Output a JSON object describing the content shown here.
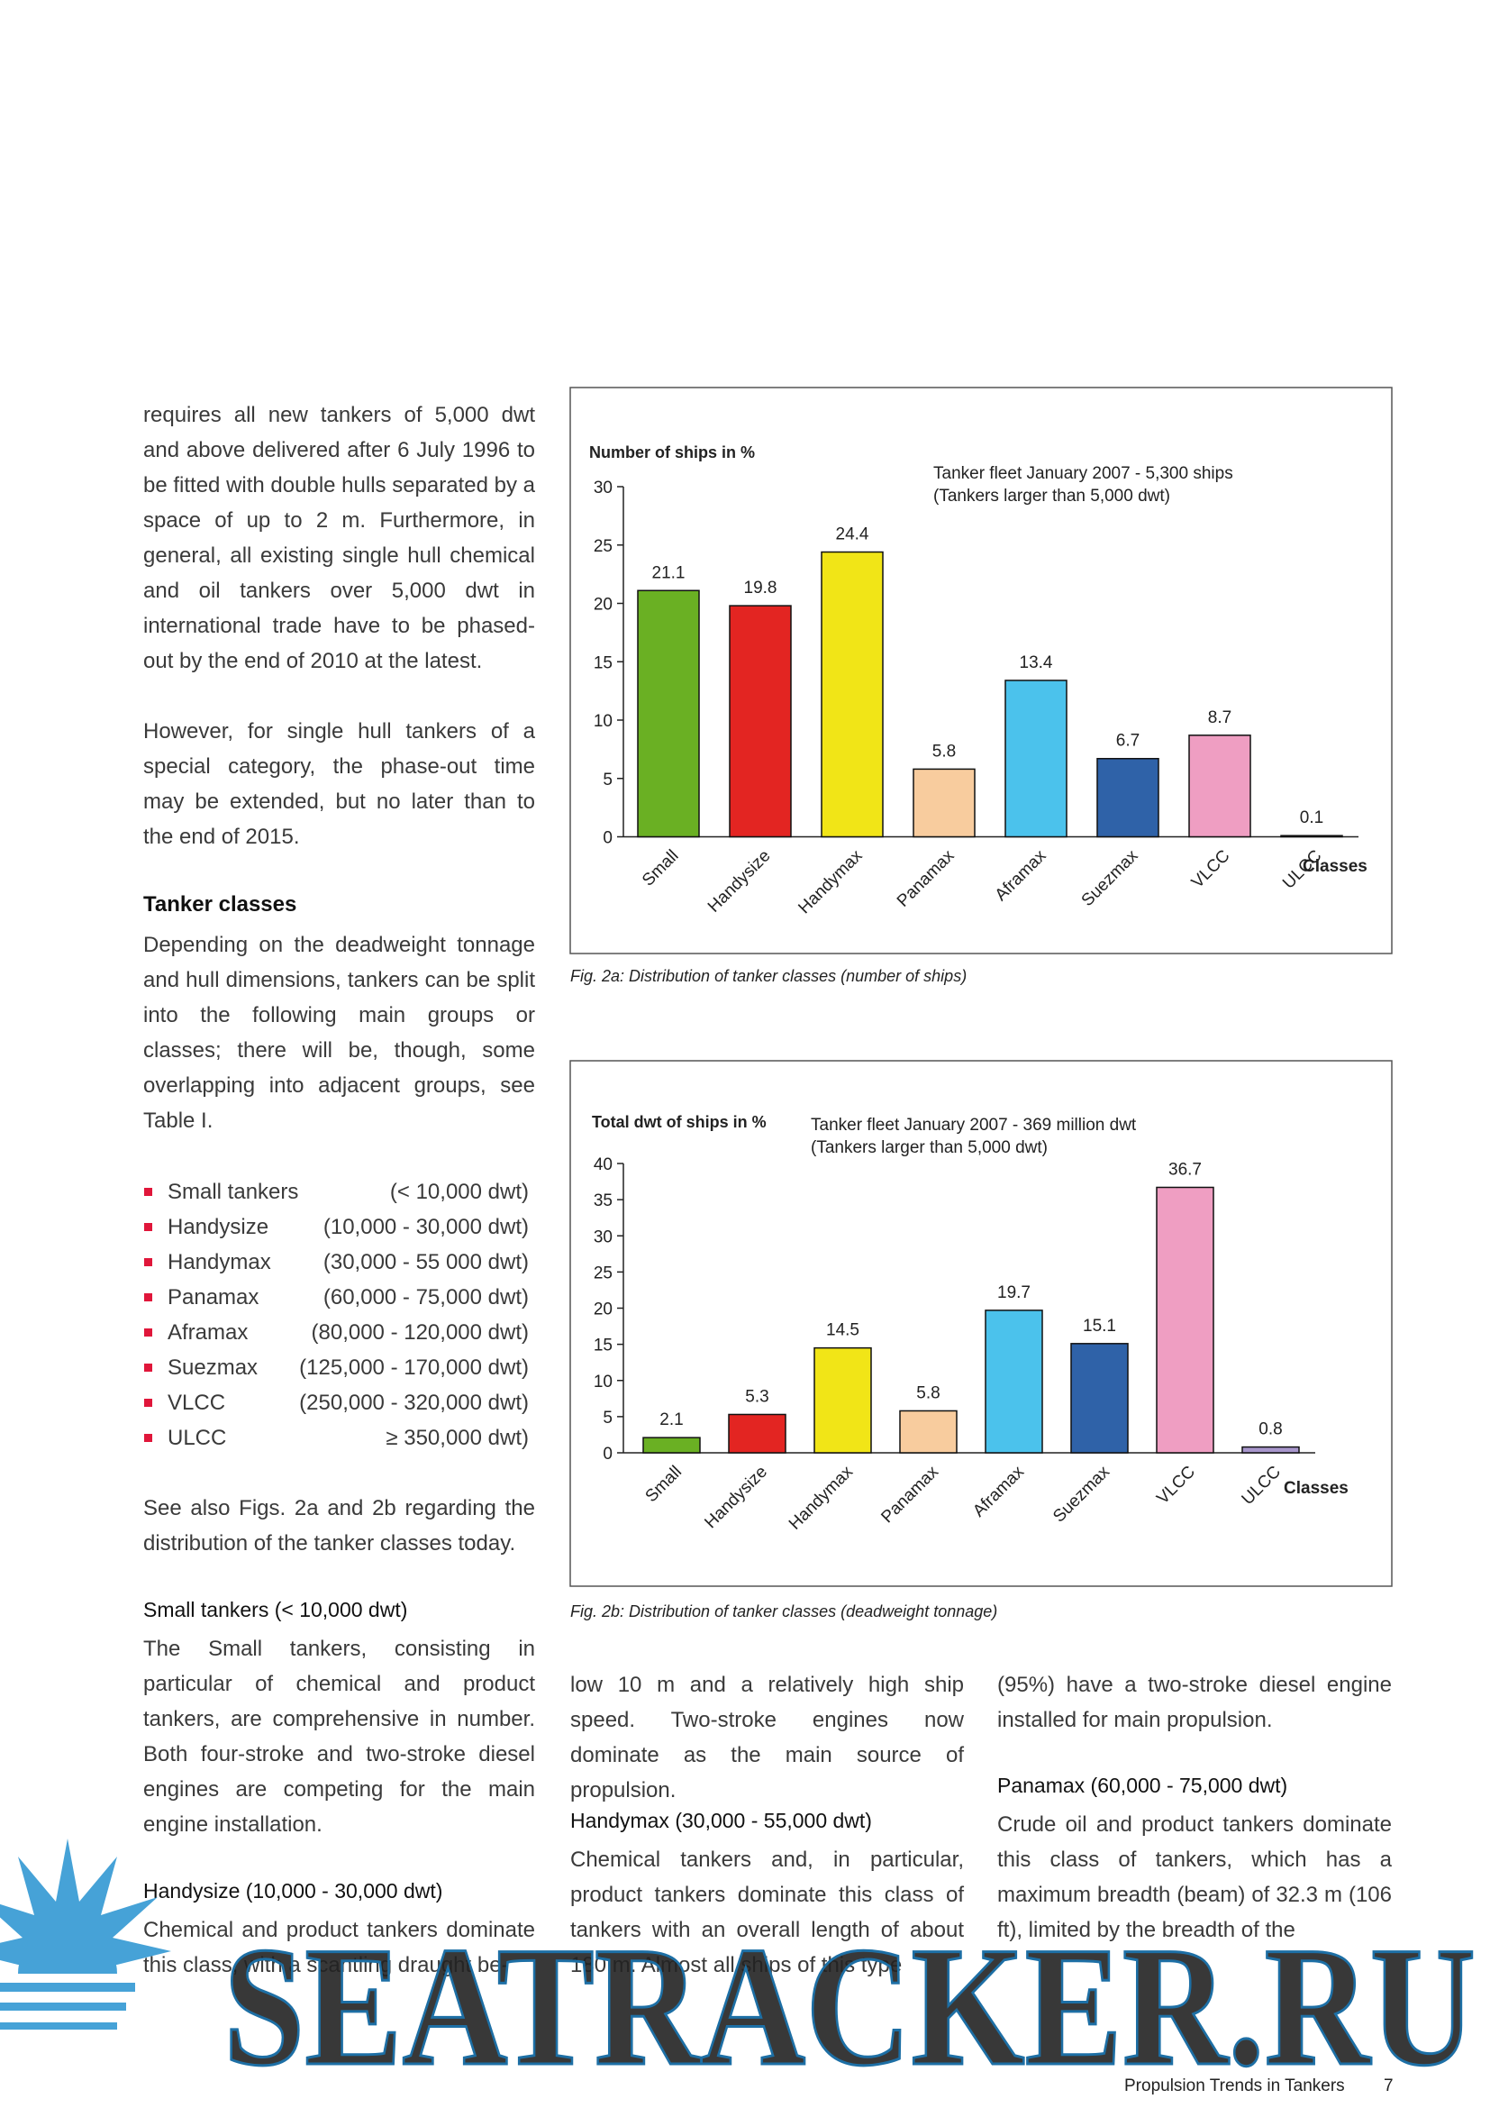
{
  "left": {
    "paragraphs": [
      "requires all new tankers of 5,000 dwt and above delivered after 6 July 1996 to be fitted with double hulls separated by a space of up to 2 m. Furthermore, in general, all existing single hull chemical and oil tankers over 5,000 dwt in international trade have to be phased-out by the end of 2010 at the latest.",
      "However, for single hull tankers of a special category, the phase-out time may be extended, but no later than to the end of 2015."
    ],
    "heading": "Tanker classes",
    "intro": "Depending on the deadweight tonnage and hull dimensions, tankers can be split into the following main groups or classes; there will be, though, some overlapping into adjacent groups, see Table I.",
    "list": [
      {
        "name": "Small tankers",
        "range": "(< 10,000 dwt)"
      },
      {
        "name": "Handysize",
        "range": "(10,000 - 30,000 dwt)"
      },
      {
        "name": "Handymax",
        "range": "(30,000 - 55 000 dwt)"
      },
      {
        "name": "Panamax",
        "range": "(60,000 - 75,000 dwt)"
      },
      {
        "name": "Aframax",
        "range": "(80,000 - 120,000 dwt)"
      },
      {
        "name": "Suezmax",
        "range": "(125,000 - 170,000 dwt)"
      },
      {
        "name": "VLCC",
        "range": "(250,000 - 320,000 dwt)"
      },
      {
        "name": "ULCC",
        "range": "≥ 350,000 dwt)"
      }
    ],
    "see_also": "See also Figs. 2a and 2b regarding the distribution of the tanker classes today.",
    "small_heading": "Small tankers (< 10,000 dwt)",
    "small_text": "The Small tankers, consisting in particular of chemical and product tankers, are comprehensive in number. Both four-stroke and two-stroke diesel engines are competing for the main engine installation.",
    "handysize_heading": "Handysize (10,000 - 30,000 dwt)",
    "handysize_text": "Chemical and product tankers dominate this class, with a scantling draught be-"
  },
  "middle": {
    "text": "low 10 m and a relatively high ship speed. Two-stroke engines now dominate as the main source of propulsion.",
    "heading": "Handymax (30,000 - 55,000 dwt)",
    "heading_text": "Chemical tankers and, in particular, product tankers dominate this class of tankers with an overall length of about 180 m. Almost all ships of this type"
  },
  "right": {
    "text": "(95%) have a two-stroke diesel engine installed for main propulsion.",
    "heading": "Panamax (60,000 - 75,000 dwt)",
    "heading_text": "Crude oil and product tankers dominate this class of tankers, which has a maximum breadth (beam) of 32.3 m (106 ft), limited by the breadth of the"
  },
  "figures": [
    {
      "type": "bar",
      "y_label": "Number of ships in %",
      "note": [
        "Tanker fleet January 2007 - 5,300 ships",
        "(Tankers larger than 5,000 dwt)"
      ],
      "x_label": "Classes",
      "categories": [
        "Small",
        "Handysize",
        "Handymax",
        "Panamax",
        "Aframax",
        "Suezmax",
        "VLCC",
        "ULCC"
      ],
      "values": [
        21.1,
        19.8,
        24.4,
        5.8,
        13.4,
        6.7,
        8.7,
        0.1
      ],
      "colors": [
        "#6ab023",
        "#e32522",
        "#f1e517",
        "#f8cc9e",
        "#4bc2ec",
        "#2f62a8",
        "#ef9ec2",
        "#a896cc"
      ],
      "ylim": [
        0,
        30
      ],
      "yticks": [
        0,
        5,
        10,
        15,
        20,
        25,
        30
      ],
      "caption": "Fig. 2a: Distribution of tanker classes (number of ships)"
    },
    {
      "type": "bar",
      "y_label": "Total dwt of ships in %",
      "note": [
        "Tanker fleet January 2007 - 369 million dwt",
        "(Tankers larger than 5,000 dwt)"
      ],
      "x_label": "Classes",
      "categories": [
        "Small",
        "Handysize",
        "Handymax",
        "Panamax",
        "Aframax",
        "Suezmax",
        "VLCC",
        "ULCC"
      ],
      "values": [
        2.1,
        5.3,
        14.5,
        5.8,
        19.7,
        15.1,
        36.7,
        0.8
      ],
      "colors": [
        "#6ab023",
        "#e32522",
        "#f1e517",
        "#f8cc9e",
        "#4bc2ec",
        "#2f62a8",
        "#ef9ec2",
        "#a896cc"
      ],
      "ylim": [
        0,
        40
      ],
      "yticks": [
        0,
        5,
        10,
        15,
        20,
        25,
        30,
        35,
        40
      ],
      "caption": "Fig. 2b: Distribution of tanker classes (deadweight tonnage)"
    }
  ],
  "footer": {
    "title": "Propulsion Trends in Tankers",
    "page": "7"
  },
  "watermark": "SEATRACKER.RU"
}
